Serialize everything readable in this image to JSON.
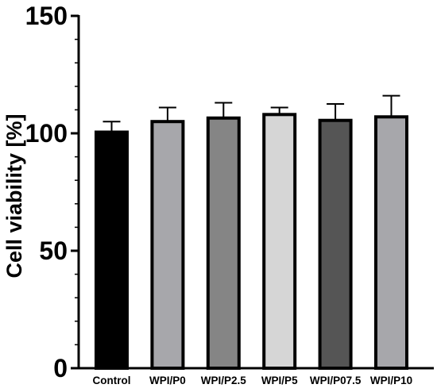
{
  "chart_data": {
    "type": "bar",
    "title": "",
    "xlabel": "",
    "ylabel": "Cell viability [%]",
    "ylim": [
      0,
      150
    ],
    "yticks": [
      "0",
      "50",
      "100",
      "150"
    ],
    "minor_ticks_per_major": 5,
    "grid": false,
    "legend": "none",
    "error_bars": "upper",
    "categories": [
      "Control",
      "WPI/P0",
      "WPI/P2.5",
      "WPI/P5",
      "WPI/P07.5",
      "WPI/P10"
    ],
    "values": [
      100.5,
      105,
      106.5,
      108,
      105.5,
      107
    ],
    "errors": [
      4.5,
      6,
      6.5,
      3,
      7,
      9
    ],
    "colors": [
      "#000000",
      "#a7a7ab",
      "#858585",
      "#d6d6d6",
      "#555555",
      "#a7a7ab"
    ]
  }
}
